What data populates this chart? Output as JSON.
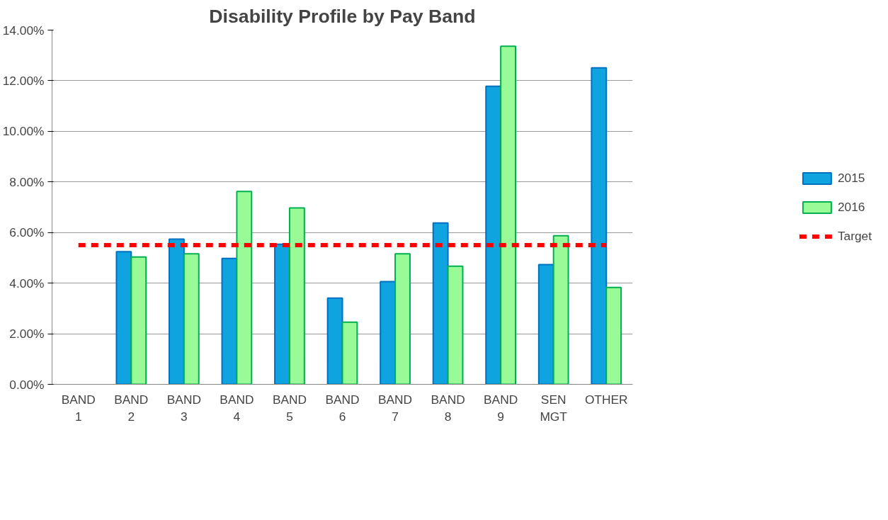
{
  "chart_data": {
    "type": "bar",
    "title": "Disability Profile by Pay Band",
    "categories": [
      "BAND 1",
      "BAND 2",
      "BAND 3",
      "BAND 4",
      "BAND 5",
      "BAND 6",
      "BAND 7",
      "BAND 8",
      "BAND 9",
      "SEN MGT",
      "OTHER"
    ],
    "series": [
      {
        "name": "2015",
        "color": "#0fa3e0",
        "values": [
          null,
          5.24,
          5.74,
          4.98,
          5.54,
          3.41,
          4.06,
          6.38,
          11.78,
          4.73,
          12.51
        ]
      },
      {
        "name": "2016",
        "color": "#98fb98",
        "values": [
          null,
          5.03,
          5.16,
          7.62,
          6.97,
          2.46,
          5.16,
          4.67,
          13.36,
          5.87,
          3.83
        ]
      },
      {
        "name": "Target",
        "type": "line",
        "color": "#ff0000",
        "line_style": "dashed",
        "values": [
          5.5,
          5.5,
          5.5,
          5.5,
          5.5,
          5.5,
          5.5,
          5.5,
          5.5,
          5.5,
          5.5
        ]
      }
    ],
    "ylim": [
      0,
      14
    ],
    "yticks": [
      {
        "value": 0,
        "label": "0.00%"
      },
      {
        "value": 2,
        "label": "2.00%"
      },
      {
        "value": 4,
        "label": "4.00%"
      },
      {
        "value": 6,
        "label": "6.00%"
      },
      {
        "value": 8,
        "label": "8.00%"
      },
      {
        "value": 10,
        "label": "10.00%"
      },
      {
        "value": 12,
        "label": "12.00%"
      },
      {
        "value": 14,
        "label": "14.00%"
      }
    ],
    "grid": "y",
    "legend": "right"
  }
}
